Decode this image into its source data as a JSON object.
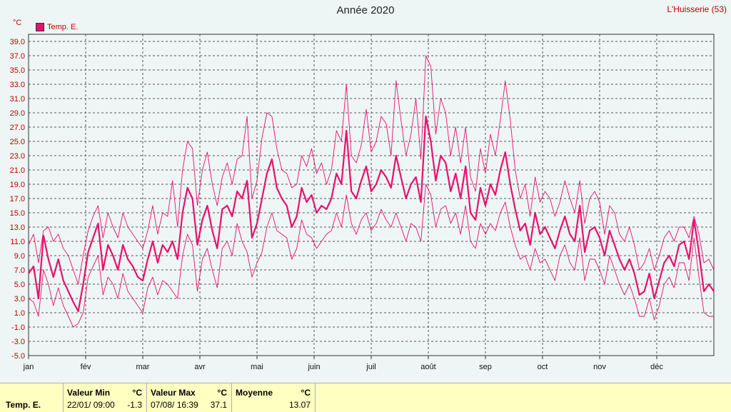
{
  "chart_data": {
    "type": "line",
    "title": "Année 2020",
    "station": "L'Huisserie (53)",
    "unit": "°C",
    "ylim": [
      -5,
      40
    ],
    "yticks": [
      "39.0",
      "37.0",
      "35.0",
      "33.0",
      "31.0",
      "29.0",
      "27.0",
      "25.0",
      "23.0",
      "21.0",
      "19.0",
      "17.0",
      "15.0",
      "13.0",
      "11.0",
      "9.0",
      "7.0",
      "5.0",
      "3.0",
      "1.0",
      "-1.0",
      "-3.0",
      "-5.0"
    ],
    "months": [
      "jan",
      "fév",
      "mar",
      "avr",
      "mai",
      "juin",
      "juil",
      "août",
      "sep",
      "oct",
      "nov",
      "déc"
    ],
    "month_labels": [
      "jan",
      "fév",
      "mar",
      "avr",
      "mai",
      "juin",
      "juil",
      "août",
      "sep",
      "oct",
      "nov",
      "déc"
    ],
    "legend": "Temp. E.",
    "grid": true,
    "series": [
      {
        "name": "Temp. E.",
        "role": "mean",
        "color": "#e8106e",
        "values": [
          6.5,
          7.5,
          3.0,
          11.8,
          8.5,
          6.0,
          8.5,
          5.5,
          4.0,
          2.5,
          1.2,
          5.0,
          9.5,
          11.5,
          13.5,
          7.0,
          10.5,
          9.0,
          7.0,
          10.5,
          8.5,
          7.5,
          6.0,
          5.5,
          8.5,
          11.0,
          8.0,
          10.5,
          9.5,
          11.0,
          8.5,
          15.0,
          18.5,
          17.0,
          10.5,
          14.0,
          16.0,
          12.5,
          10.0,
          15.5,
          16.0,
          14.5,
          18.0,
          17.0,
          19.5,
          11.5,
          13.5,
          17.0,
          20.5,
          22.5,
          18.5,
          17.0,
          16.0,
          13.0,
          14.5,
          18.5,
          16.5,
          17.5,
          15.0,
          16.0,
          15.5,
          17.0,
          20.5,
          19.0,
          26.5,
          18.0,
          17.0,
          19.5,
          21.5,
          18.0,
          19.0,
          21.0,
          20.0,
          18.5,
          23.0,
          20.0,
          17.0,
          19.0,
          20.0,
          16.5,
          28.5,
          25.0,
          19.5,
          23.0,
          22.0,
          18.0,
          20.5,
          17.0,
          21.5,
          15.0,
          14.0,
          18.5,
          16.0,
          19.0,
          17.5,
          21.0,
          23.5,
          19.0,
          15.5,
          12.5,
          13.5,
          10.5,
          15.0,
          12.0,
          13.0,
          11.5,
          10.0,
          12.5,
          14.5,
          12.0,
          11.0,
          16.0,
          9.5,
          12.5,
          13.0,
          11.5,
          9.0,
          12.5,
          10.5,
          8.5,
          7.0,
          8.5,
          6.5,
          3.5,
          4.0,
          6.5,
          3.0,
          5.5,
          8.0,
          9.0,
          7.5,
          10.5,
          11.0,
          8.5,
          14.0,
          9.5,
          4.0,
          5.0,
          4.0
        ]
      },
      {
        "name": "",
        "role": "max",
        "color": "#e8106e",
        "values": [
          10.5,
          12.0,
          8.0,
          12.5,
          13.0,
          11.0,
          12.0,
          10.0,
          9.0,
          7.0,
          5.0,
          9.0,
          12.5,
          14.5,
          16.0,
          11.5,
          15.0,
          13.0,
          11.5,
          15.0,
          13.0,
          12.0,
          11.0,
          10.0,
          12.5,
          16.0,
          12.0,
          15.0,
          14.5,
          19.5,
          13.0,
          21.0,
          25.0,
          24.0,
          16.0,
          21.0,
          23.5,
          19.0,
          16.0,
          20.0,
          22.0,
          19.0,
          22.5,
          23.0,
          28.5,
          17.0,
          19.5,
          25.5,
          29.0,
          28.5,
          24.0,
          21.0,
          20.5,
          18.5,
          19.0,
          23.0,
          21.5,
          24.0,
          20.5,
          22.0,
          19.0,
          21.0,
          26.5,
          25.0,
          33.0,
          23.0,
          22.0,
          24.5,
          29.5,
          23.5,
          25.0,
          28.5,
          27.5,
          23.0,
          33.5,
          28.0,
          23.0,
          26.0,
          31.0,
          22.5,
          37.0,
          35.5,
          26.0,
          31.0,
          29.0,
          23.0,
          27.0,
          22.0,
          27.0,
          20.0,
          18.0,
          24.0,
          20.5,
          26.0,
          23.0,
          28.0,
          33.5,
          28.0,
          21.0,
          17.0,
          19.0,
          14.5,
          20.0,
          16.5,
          18.0,
          17.0,
          14.5,
          16.5,
          19.5,
          17.0,
          15.0,
          19.5,
          13.5,
          17.0,
          18.0,
          16.5,
          12.0,
          16.0,
          15.0,
          12.0,
          11.0,
          13.0,
          10.5,
          7.0,
          8.0,
          10.0,
          7.0,
          9.0,
          11.5,
          12.5,
          11.0,
          13.0,
          13.0,
          11.5,
          14.5,
          12.0,
          8.0,
          8.5,
          7.0
        ]
      },
      {
        "name": "",
        "role": "min",
        "color": "#e8106e",
        "values": [
          3.0,
          2.5,
          0.5,
          7.0,
          5.0,
          2.0,
          4.5,
          2.0,
          0.5,
          -1.0,
          -0.5,
          1.0,
          6.0,
          7.5,
          9.0,
          3.5,
          6.0,
          5.0,
          3.0,
          6.5,
          4.0,
          3.0,
          2.0,
          1.0,
          4.5,
          6.0,
          3.5,
          5.5,
          5.0,
          4.0,
          3.0,
          9.0,
          12.0,
          10.5,
          4.0,
          8.5,
          10.0,
          7.0,
          4.5,
          10.0,
          11.0,
          9.0,
          13.5,
          11.0,
          9.5,
          6.0,
          8.0,
          9.5,
          13.0,
          15.0,
          12.5,
          12.0,
          11.5,
          8.5,
          10.0,
          14.0,
          12.0,
          11.5,
          10.0,
          11.0,
          12.0,
          12.5,
          15.0,
          13.0,
          17.5,
          13.5,
          12.0,
          14.0,
          15.0,
          12.5,
          13.5,
          15.5,
          14.0,
          13.0,
          15.0,
          13.0,
          11.0,
          13.5,
          13.0,
          11.0,
          19.0,
          17.5,
          13.0,
          15.5,
          16.0,
          13.5,
          15.0,
          12.0,
          16.0,
          11.0,
          10.0,
          13.5,
          12.0,
          13.5,
          12.5,
          15.0,
          16.5,
          13.0,
          10.5,
          8.5,
          9.0,
          7.0,
          10.0,
          8.0,
          8.5,
          7.0,
          5.5,
          9.0,
          10.5,
          8.0,
          7.0,
          11.5,
          5.5,
          8.5,
          8.5,
          7.0,
          5.0,
          9.0,
          7.0,
          5.0,
          3.5,
          5.0,
          3.0,
          0.5,
          0.5,
          3.0,
          0.0,
          2.0,
          5.0,
          6.0,
          4.5,
          8.0,
          8.0,
          5.5,
          11.5,
          6.0,
          1.0,
          0.5,
          0.5
        ]
      }
    ]
  },
  "stats": {
    "series_label": "Temp. E.",
    "min_label": "Valeur Min",
    "max_label": "Valeur Max",
    "avg_label": "Moyenne",
    "unit": "°C",
    "min_date": "22/01/  09:00",
    "min_value": "-1.3",
    "max_date": "07/08/  16:39",
    "max_value": "37.1",
    "avg_value": "13.07"
  }
}
